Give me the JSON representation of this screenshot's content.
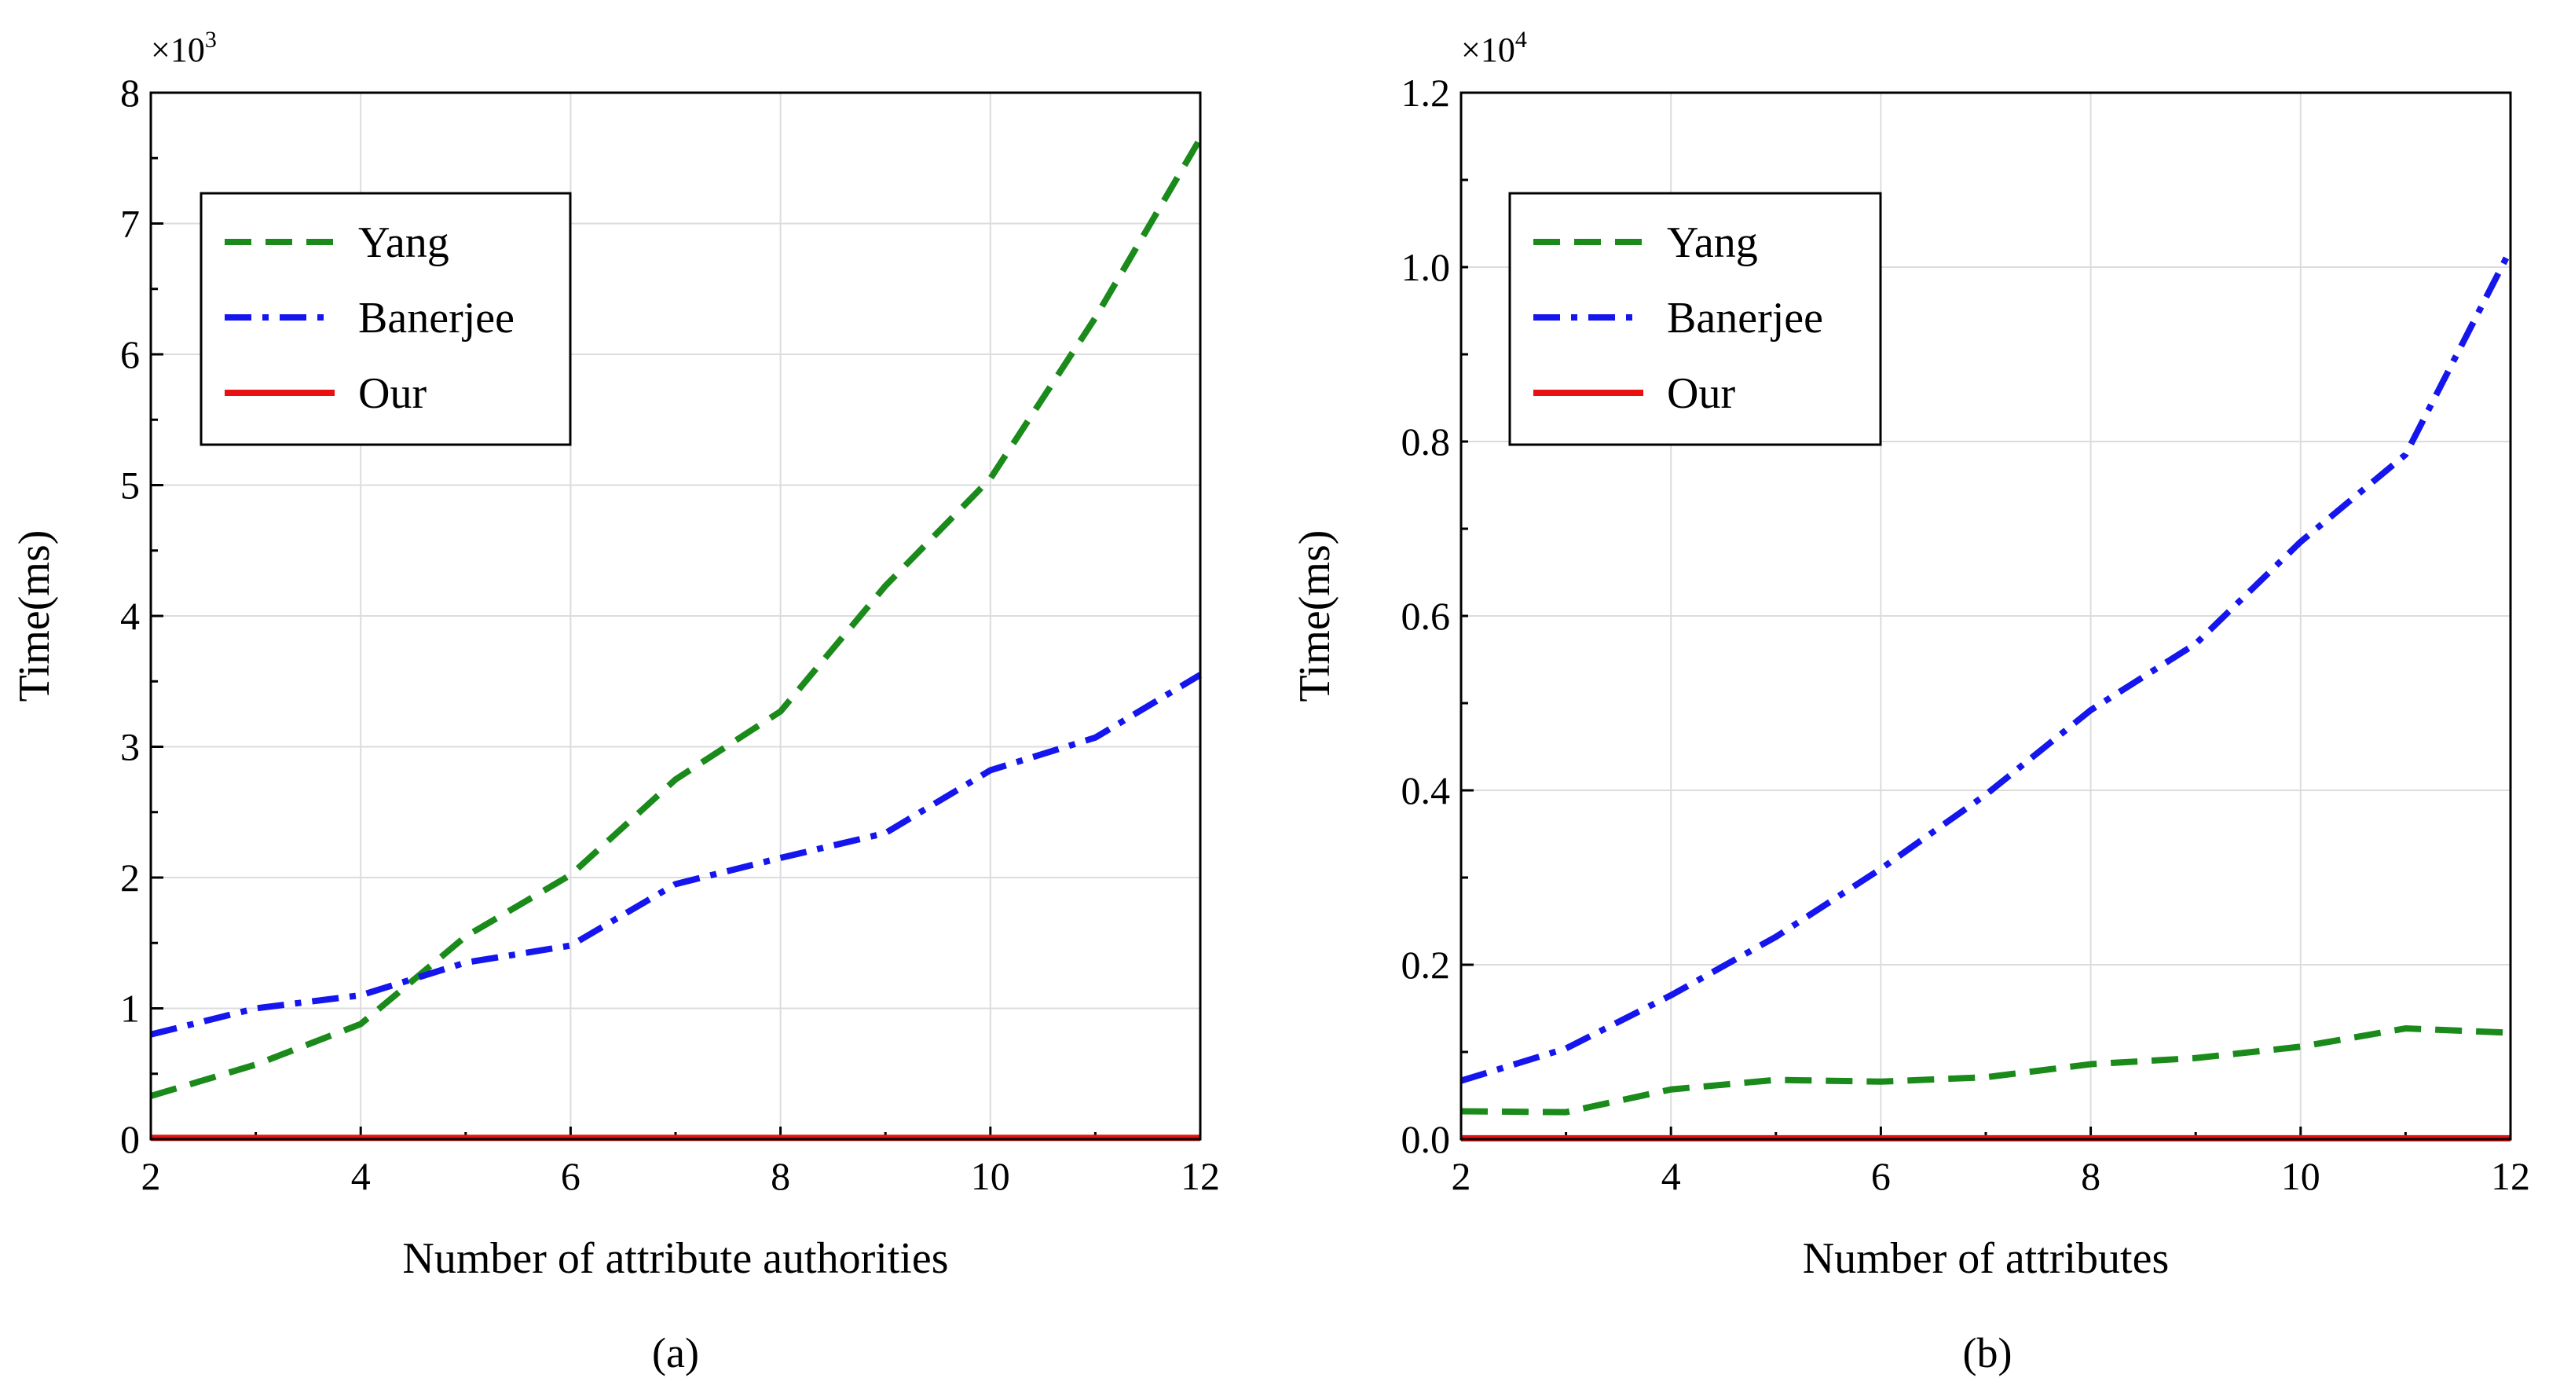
{
  "figure": {
    "panels": [
      "a",
      "b"
    ]
  },
  "chart_data": [
    {
      "type": "line",
      "caption": "(a)",
      "xlabel": "Number of attribute authorities",
      "ylabel": "Time(ms)",
      "multiplier_base": "×10",
      "multiplier_exp": "3",
      "xlim": [
        2,
        12
      ],
      "ylim": [
        0,
        8
      ],
      "xticks": [
        2,
        4,
        6,
        8,
        10,
        12
      ],
      "yticks": [
        0,
        1,
        2,
        3,
        4,
        5,
        6,
        7,
        8
      ],
      "ytick_labels": [
        "0",
        "1",
        "2",
        "3",
        "4",
        "5",
        "6",
        "7",
        "8"
      ],
      "x": [
        2,
        3,
        4,
        5,
        6,
        7,
        8,
        9,
        10,
        11,
        12
      ],
      "legend_position": "top-left",
      "series": [
        {
          "name": "Yang",
          "color": "#1a8a1a",
          "dash": "dashed",
          "values": [
            0.33,
            0.57,
            0.88,
            1.55,
            2.02,
            2.75,
            3.27,
            4.23,
            5.05,
            6.28,
            7.65
          ]
        },
        {
          "name": "Banerjee",
          "color": "#1515ee",
          "dash": "dashdot",
          "values": [
            0.8,
            1.0,
            1.1,
            1.35,
            1.48,
            1.95,
            2.15,
            2.34,
            2.82,
            3.07,
            3.55
          ]
        },
        {
          "name": "Our",
          "color": "#e81010",
          "dash": "solid",
          "values": [
            0.01,
            0.01,
            0.01,
            0.01,
            0.01,
            0.01,
            0.01,
            0.01,
            0.01,
            0.01,
            0.01
          ]
        }
      ]
    },
    {
      "type": "line",
      "caption": "(b)",
      "xlabel": "Number of attributes",
      "ylabel": "Time(ms)",
      "multiplier_base": "×10",
      "multiplier_exp": "4",
      "xlim": [
        2,
        12
      ],
      "ylim": [
        0,
        1.2
      ],
      "xticks": [
        2,
        4,
        6,
        8,
        10,
        12
      ],
      "yticks": [
        0,
        0.2,
        0.4,
        0.6,
        0.8,
        1.0,
        1.2
      ],
      "ytick_labels": [
        "0.0",
        "0.2",
        "0.4",
        "0.6",
        "0.8",
        "1.0",
        "1.2"
      ],
      "x": [
        2,
        3,
        4,
        5,
        6,
        7,
        8,
        9,
        10,
        11,
        12
      ],
      "legend_position": "top-left",
      "series": [
        {
          "name": "Yang",
          "color": "#1a8a1a",
          "dash": "dashed",
          "values": [
            0.032,
            0.031,
            0.057,
            0.068,
            0.066,
            0.071,
            0.086,
            0.093,
            0.106,
            0.127,
            0.122
          ]
        },
        {
          "name": "Banerjee",
          "color": "#1515ee",
          "dash": "dashdot",
          "values": [
            0.067,
            0.104,
            0.165,
            0.232,
            0.31,
            0.395,
            0.492,
            0.568,
            0.685,
            0.785,
            1.02
          ]
        },
        {
          "name": "Our",
          "color": "#e81010",
          "dash": "solid",
          "values": [
            0.001,
            0.001,
            0.001,
            0.001,
            0.001,
            0.001,
            0.001,
            0.001,
            0.001,
            0.001,
            0.001
          ]
        }
      ]
    }
  ]
}
